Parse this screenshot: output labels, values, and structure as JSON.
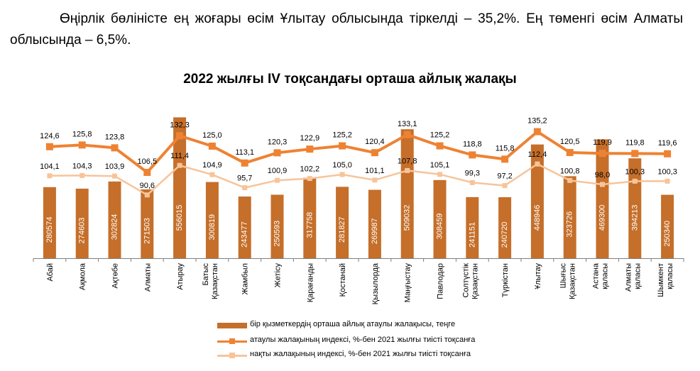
{
  "intro_text": "Өңірлік бөліністе ең жоғары өсім Ұлытау облысында тіркелді – 35,2%. Ең төменгі өсім Алматы облысында – 6,5%.",
  "chart_data": {
    "type": "bar+line",
    "title": "2022 жылғы IV тоқсандағы орташа айлық жалақы",
    "categories": [
      "Абай",
      "Ақмола",
      "Ақтөбе",
      "Алматы",
      "Атырау",
      "Батыс Қазақстан",
      "Жамбыл",
      "Жетісу",
      "Қарағанды",
      "Қостанай",
      "Қызылорда",
      "Маңғыстау",
      "Павлодар",
      "Солтүстік Қазақстан",
      "Түркістан",
      "Ұлытау",
      "Шығыс Қазақстан",
      "Астана қаласы",
      "Алматы қаласы",
      "Шымкент қаласы"
    ],
    "series": [
      {
        "name": "бір қызметкердің орташа айлық атаулы жалақысы, теңге",
        "kind": "bar",
        "color": "#c56f2a",
        "values": [
          280574,
          274603,
          302824,
          271503,
          556015,
          300819,
          243477,
          250593,
          317758,
          281827,
          269987,
          509032,
          308459,
          241151,
          240720,
          448946,
          323726,
          469300,
          394213,
          250340
        ],
        "labels": [
          "280574",
          "274603",
          "302824",
          "271503",
          "556015",
          "300819",
          "243477",
          "250593",
          "317758",
          "281827",
          "269987",
          "509032",
          "308459",
          "241151",
          "240720",
          "448946",
          "323726",
          "469300",
          "394213",
          "250340"
        ]
      },
      {
        "name": "атаулы жалақының индексі, %-бен 2021 жылғы тиісті тоқсанға",
        "kind": "line",
        "color": "#ee8233",
        "values": [
          124.6,
          125.8,
          123.8,
          106.5,
          132.3,
          125.0,
          113.1,
          120.3,
          122.9,
          125.2,
          120.4,
          133.1,
          125.2,
          118.8,
          115.8,
          135.2,
          120.5,
          119.9,
          119.8,
          119.6
        ],
        "labels": [
          "124,6",
          "125,8",
          "123,8",
          "106,5",
          "132,3",
          "125,0",
          "113,1",
          "120,3",
          "122,9",
          "125,2",
          "120,4",
          "133,1",
          "125,2",
          "118,8",
          "115,8",
          "135,2",
          "120,5",
          "119,9",
          "119,8",
          "119,6"
        ]
      },
      {
        "name": "нақты жалақының индексі, %-бен 2021 жылғы тиісті тоқсанға",
        "kind": "line",
        "color": "#f7c49a",
        "values": [
          104.1,
          104.3,
          103.9,
          90.6,
          111.4,
          104.9,
          95.7,
          100.9,
          102.2,
          105.0,
          101.1,
          107.8,
          105.1,
          99.3,
          97.2,
          112.4,
          100.8,
          98.0,
          100.3,
          100.3
        ],
        "labels": [
          "104,1",
          "104,3",
          "103,9",
          "90,6",
          "111,4",
          "104,9",
          "95,7",
          "100,9",
          "102,2",
          "105,0",
          "101,1",
          "107,8",
          "105,1",
          "99,3",
          "97,2",
          "112,4",
          "100,8",
          "98,0",
          "100,3",
          "100,3"
        ]
      }
    ],
    "bar_ylim": [
      0,
      560000
    ],
    "index_ylim": [
      82,
      136
    ],
    "grid": false,
    "legend_position": "bottom"
  }
}
